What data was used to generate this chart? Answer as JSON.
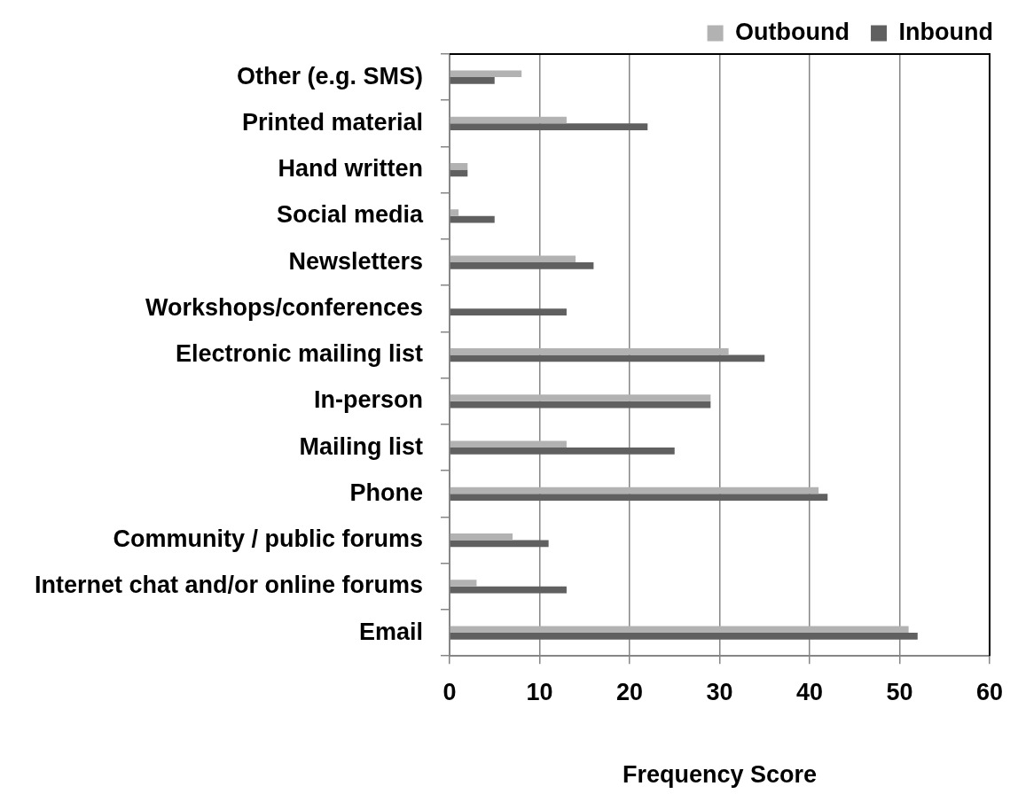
{
  "chart_data": {
    "type": "bar",
    "orientation": "horizontal",
    "categories": [
      "Other (e.g. SMS)",
      "Printed material",
      "Hand written",
      "Social media",
      "Newsletters",
      "Workshops/conferences",
      "Electronic mailing list",
      "In-person",
      "Mailing list",
      "Phone",
      "Community / public forums",
      "Internet chat and/or online forums",
      "Email"
    ],
    "series": [
      {
        "name": "Outbound",
        "color": "#b2b2b2",
        "values": [
          8,
          13,
          2,
          1,
          14,
          0,
          31,
          29,
          13,
          41,
          7,
          3,
          51
        ]
      },
      {
        "name": "Inbound",
        "color": "#606060",
        "values": [
          5,
          22,
          2,
          5,
          16,
          13,
          35,
          29,
          25,
          42,
          11,
          13,
          52
        ]
      }
    ],
    "xlabel": "Frequency Score",
    "xlim": [
      0,
      60
    ],
    "xticks": [
      0,
      10,
      20,
      30,
      40,
      50,
      60
    ],
    "grid": "x",
    "legend": "top right"
  }
}
